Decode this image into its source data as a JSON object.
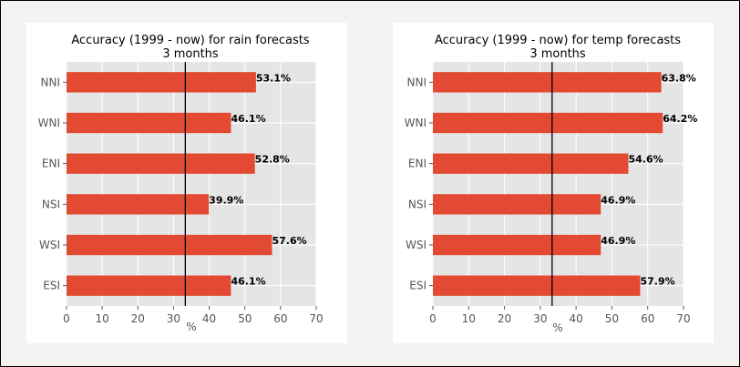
{
  "chart_data": [
    {
      "type": "bar",
      "orientation": "horizontal",
      "title": "Accuracy (1999 - now) for rain forecasts",
      "subtitle": "3 months",
      "xlabel": "%",
      "ylabel": "",
      "categories": [
        "NNI",
        "WNI",
        "ENI",
        "NSI",
        "WSI",
        "ESI"
      ],
      "values": [
        53.1,
        46.1,
        52.8,
        39.9,
        57.6,
        46.1
      ],
      "data_labels": [
        "53.1%",
        "46.1%",
        "52.8%",
        "39.9%",
        "57.6%",
        "46.1%"
      ],
      "xlim": [
        0,
        70
      ],
      "xticks": [
        0,
        10,
        20,
        30,
        40,
        50,
        60,
        70
      ],
      "reference_line": 33.3,
      "grid": true,
      "bar_color": "#e24a33"
    },
    {
      "type": "bar",
      "orientation": "horizontal",
      "title": "Accuracy (1999 - now) for temp forecasts",
      "subtitle": "3 months",
      "xlabel": "%",
      "ylabel": "",
      "categories": [
        "NNI",
        "WNI",
        "ENI",
        "NSI",
        "WSI",
        "ESI"
      ],
      "values": [
        63.8,
        64.2,
        54.6,
        46.9,
        46.9,
        57.9
      ],
      "data_labels": [
        "63.8%",
        "64.2%",
        "54.6%",
        "46.9%",
        "46.9%",
        "57.9%"
      ],
      "xlim": [
        0,
        70
      ],
      "xticks": [
        0,
        10,
        20,
        30,
        40,
        50,
        60,
        70
      ],
      "reference_line": 33.3,
      "grid": true,
      "bar_color": "#e24a33"
    }
  ],
  "colors": {
    "plot_background": "#e5e5e5",
    "grid": "#ffffff",
    "reference_line": "#000000"
  }
}
